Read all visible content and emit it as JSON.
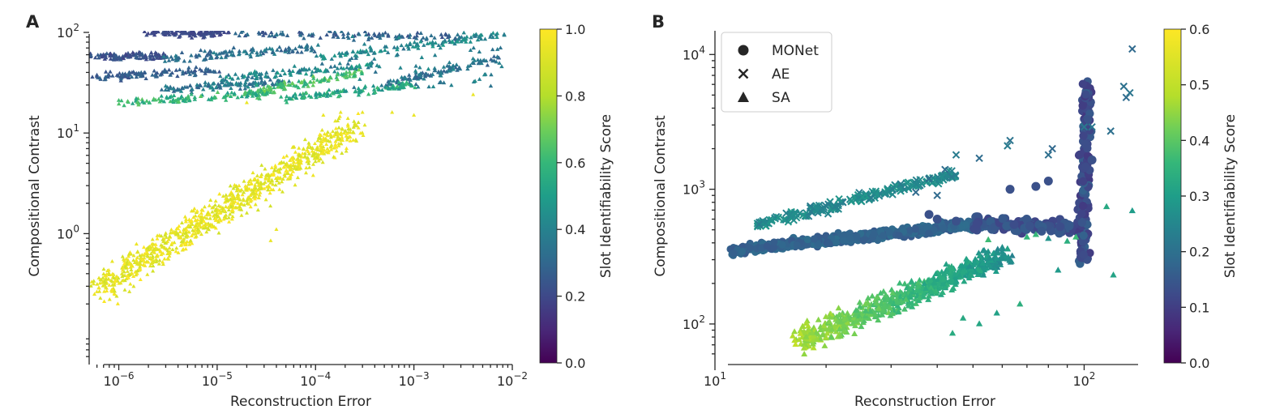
{
  "chart_data": [
    {
      "panel": "A",
      "type": "scatter",
      "xlabel": "Reconstruction Error",
      "ylabel": "Compositional Contrast",
      "x_scale": "log",
      "y_scale": "log",
      "xlim": [
        5e-07,
        0.01
      ],
      "ylim": [
        0.05,
        100
      ],
      "x_ticks": [
        {
          "v": 1e-06,
          "base": "10",
          "exp": "−6"
        },
        {
          "v": 1e-05,
          "base": "10",
          "exp": "−5"
        },
        {
          "v": 0.0001,
          "base": "10",
          "exp": "−4"
        },
        {
          "v": 0.001,
          "base": "10",
          "exp": "−3"
        },
        {
          "v": 0.01,
          "base": "10",
          "exp": "−2"
        }
      ],
      "y_ticks": [
        {
          "v": 1,
          "base": "10",
          "exp": "0"
        },
        {
          "v": 10,
          "base": "10",
          "exp": "1"
        },
        {
          "v": 100,
          "base": "10",
          "exp": "2"
        }
      ],
      "marker": "triangle",
      "colorbar": {
        "label": "Slot Identifiability Score",
        "range": [
          0.0,
          1.0
        ],
        "ticks": [
          "0.0",
          "0.2",
          "0.4",
          "0.6",
          "0.8",
          "1.0"
        ],
        "colormap": "viridis"
      },
      "clusters": [
        {
          "desc": "high-identifiability diagonal band",
          "x_range": [
            6e-07,
            0.0003
          ],
          "y_range": [
            0.25,
            20
          ],
          "score": 0.97
        },
        {
          "desc": "upper band",
          "x_range": [
            6e-07,
            0.008
          ],
          "y_range": [
            20,
            100
          ],
          "score_range": [
            0.1,
            0.8
          ]
        }
      ]
    },
    {
      "panel": "B",
      "type": "scatter",
      "xlabel": "Reconstruction Error",
      "ylabel": "Compositional Contrast",
      "x_scale": "log",
      "y_scale": "log",
      "xlim": [
        10,
        140
      ],
      "ylim": [
        50,
        15000
      ],
      "x_ticks": [
        {
          "v": 10,
          "base": "10",
          "exp": "1"
        },
        {
          "v": 100,
          "base": "10",
          "exp": "2"
        }
      ],
      "y_ticks": [
        {
          "v": 100,
          "base": "10",
          "exp": "2"
        },
        {
          "v": 1000,
          "base": "10",
          "exp": "3"
        },
        {
          "v": 10000,
          "base": "10",
          "exp": "4"
        }
      ],
      "legend": {
        "position": "top-left",
        "entries": [
          {
            "label": "MONet",
            "marker": "circle"
          },
          {
            "label": "AE",
            "marker": "x"
          },
          {
            "label": "SA",
            "marker": "triangle"
          }
        ]
      },
      "colorbar": {
        "label": "Slot Identifiability Score",
        "range": [
          0.0,
          0.6
        ],
        "ticks": [
          "0.0",
          "0.1",
          "0.2",
          "0.3",
          "0.4",
          "0.5",
          "0.6"
        ],
        "colormap": "viridis"
      },
      "series": [
        {
          "name": "MONet",
          "x_range": [
            11,
            103
          ],
          "y_range": [
            280,
            6500
          ],
          "score_range": [
            0.1,
            0.3
          ]
        },
        {
          "name": "AE",
          "x_range": [
            13,
            135
          ],
          "y_range": [
            480,
            11000
          ],
          "score_range": [
            0.15,
            0.3
          ]
        },
        {
          "name": "SA",
          "x_range": [
            17,
            135
          ],
          "y_range": [
            65,
            700
          ],
          "score_range": [
            0.15,
            0.55
          ]
        }
      ]
    }
  ],
  "panels": {
    "a": {
      "letter": "A",
      "xlabel": "Reconstruction Error",
      "ylabel": "Compositional Contrast",
      "cbar_label": "Slot Identifiability Score"
    },
    "b": {
      "letter": "B",
      "xlabel": "Reconstruction Error",
      "ylabel": "Compositional Contrast",
      "cbar_label": "Slot Identifiability Score",
      "legend": [
        "MONet",
        "AE",
        "SA"
      ]
    }
  }
}
